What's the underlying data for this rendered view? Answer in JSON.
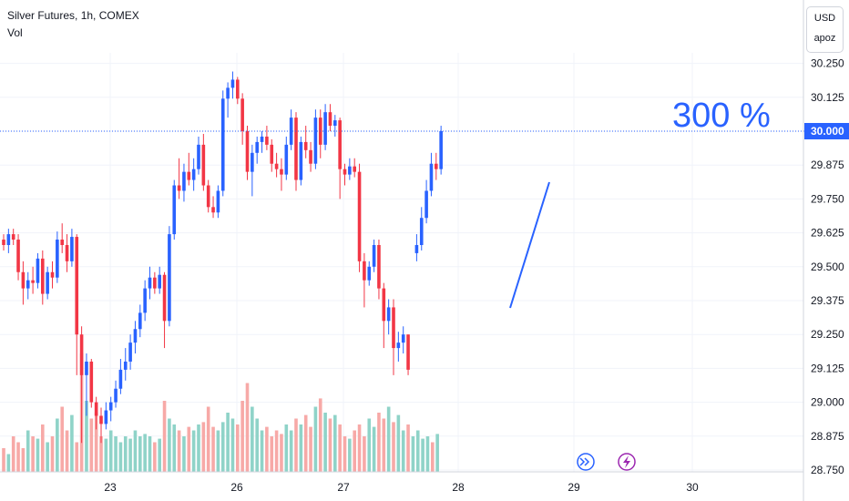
{
  "header": {
    "title": "Silver Futures, 1h, COMEX",
    "volume_label": "Vol"
  },
  "currency_button": {
    "currency": "USD",
    "scale_mode": "apoz"
  },
  "annotation": {
    "text": "300 %"
  },
  "price_marker": {
    "label": "30.000",
    "value": 30.0,
    "color": "#2962ff"
  },
  "colors": {
    "up": "#2962ff",
    "down": "#f23645",
    "vol_up": "#8fd3c8",
    "vol_down": "#f7a9a7",
    "marker_line": "#2962ff"
  },
  "icons": {
    "event_a": "double-chevron-right-icon",
    "event_b": "lightning-bolt-icon"
  },
  "chart_data": {
    "type": "candlestick",
    "title": "Silver Futures, 1h, COMEX",
    "ylim": [
      28.75,
      30.3
    ],
    "y_ticks": [
      "30.250",
      "30.125",
      "30.000",
      "29.875",
      "29.750",
      "29.625",
      "29.500",
      "29.375",
      "29.250",
      "29.125",
      "29.000",
      "28.875",
      "28.750"
    ],
    "x_ticks": [
      "23",
      "26",
      "27",
      "28",
      "29",
      "30"
    ],
    "grid": true,
    "candles": [
      [
        29.6,
        29.62,
        29.56,
        29.58
      ],
      [
        29.58,
        29.64,
        29.55,
        29.62
      ],
      [
        29.62,
        29.64,
        29.58,
        29.6
      ],
      [
        29.6,
        29.62,
        29.45,
        29.48
      ],
      [
        29.48,
        29.52,
        29.36,
        29.42
      ],
      [
        29.42,
        29.48,
        29.38,
        29.45
      ],
      [
        29.45,
        29.5,
        29.4,
        29.44
      ],
      [
        29.44,
        29.55,
        29.42,
        29.53
      ],
      [
        29.53,
        29.56,
        29.36,
        29.4
      ],
      [
        29.4,
        29.5,
        29.38,
        29.48
      ],
      [
        29.48,
        29.52,
        29.42,
        29.46
      ],
      [
        29.46,
        29.63,
        29.44,
        29.6
      ],
      [
        29.6,
        29.66,
        29.55,
        29.58
      ],
      [
        29.58,
        29.62,
        29.48,
        29.52
      ],
      [
        29.52,
        29.64,
        29.5,
        29.61
      ],
      [
        29.61,
        29.62,
        29.1,
        29.25
      ],
      [
        29.25,
        29.28,
        28.85,
        29.1
      ],
      [
        29.1,
        29.18,
        28.95,
        29.15
      ],
      [
        29.15,
        29.16,
        28.98,
        29.0
      ],
      [
        29.0,
        29.02,
        28.9,
        28.95
      ],
      [
        28.95,
        28.98,
        28.85,
        28.92
      ],
      [
        28.92,
        29.0,
        28.9,
        28.97
      ],
      [
        28.97,
        29.02,
        28.93,
        29.0
      ],
      [
        29.0,
        29.08,
        28.98,
        29.05
      ],
      [
        29.05,
        29.16,
        29.03,
        29.12
      ],
      [
        29.12,
        29.2,
        29.08,
        29.15
      ],
      [
        29.15,
        29.25,
        29.12,
        29.22
      ],
      [
        29.22,
        29.3,
        29.18,
        29.27
      ],
      [
        29.27,
        29.36,
        29.24,
        29.33
      ],
      [
        29.33,
        29.45,
        29.3,
        29.42
      ],
      [
        29.42,
        29.5,
        29.38,
        29.46
      ],
      [
        29.46,
        29.48,
        29.4,
        29.42
      ],
      [
        29.42,
        29.5,
        29.4,
        29.47
      ],
      [
        29.47,
        29.48,
        29.2,
        29.3
      ],
      [
        29.3,
        29.65,
        29.28,
        29.62
      ],
      [
        29.62,
        29.82,
        29.6,
        29.8
      ],
      [
        29.8,
        29.9,
        29.75,
        29.78
      ],
      [
        29.78,
        29.88,
        29.74,
        29.85
      ],
      [
        29.85,
        29.92,
        29.8,
        29.82
      ],
      [
        29.82,
        29.9,
        29.78,
        29.86
      ],
      [
        29.86,
        29.98,
        29.84,
        29.95
      ],
      [
        29.95,
        29.99,
        29.78,
        29.8
      ],
      [
        29.8,
        29.82,
        29.7,
        29.72
      ],
      [
        29.72,
        29.76,
        29.68,
        29.7
      ],
      [
        29.7,
        29.8,
        29.68,
        29.78
      ],
      [
        29.78,
        30.15,
        29.76,
        30.12
      ],
      [
        30.12,
        30.18,
        30.05,
        30.16
      ],
      [
        30.16,
        30.22,
        30.12,
        30.19
      ],
      [
        30.19,
        30.2,
        30.1,
        30.12
      ],
      [
        30.12,
        30.14,
        29.95,
        30.0
      ],
      [
        30.0,
        30.02,
        29.82,
        29.85
      ],
      [
        29.85,
        29.95,
        29.76,
        29.92
      ],
      [
        29.92,
        29.98,
        29.88,
        29.96
      ],
      [
        29.96,
        30.0,
        29.92,
        29.98
      ],
      [
        29.98,
        30.02,
        29.93,
        29.95
      ],
      [
        29.95,
        29.97,
        29.85,
        29.88
      ],
      [
        29.88,
        29.92,
        29.83,
        29.86
      ],
      [
        29.86,
        29.9,
        29.78,
        29.84
      ],
      [
        29.84,
        29.98,
        29.82,
        29.95
      ],
      [
        29.95,
        30.08,
        29.93,
        30.05
      ],
      [
        30.05,
        30.07,
        29.78,
        29.82
      ],
      [
        29.82,
        29.98,
        29.8,
        29.96
      ],
      [
        29.96,
        30.02,
        29.9,
        29.93
      ],
      [
        29.93,
        29.96,
        29.85,
        29.88
      ],
      [
        29.88,
        30.08,
        29.86,
        30.05
      ],
      [
        30.05,
        30.08,
        29.9,
        29.95
      ],
      [
        29.95,
        30.1,
        29.93,
        30.07
      ],
      [
        30.07,
        30.1,
        30.0,
        30.02
      ],
      [
        30.02,
        30.06,
        29.98,
        30.04
      ],
      [
        30.04,
        30.05,
        29.75,
        29.86
      ],
      [
        29.86,
        29.88,
        29.8,
        29.84
      ],
      [
        29.84,
        29.9,
        29.82,
        29.87
      ],
      [
        29.87,
        29.9,
        29.83,
        29.85
      ],
      [
        29.85,
        29.88,
        29.48,
        29.52
      ],
      [
        29.52,
        29.55,
        29.35,
        29.45
      ],
      [
        29.45,
        29.52,
        29.43,
        29.5
      ],
      [
        29.5,
        29.6,
        29.48,
        29.58
      ],
      [
        29.58,
        29.6,
        29.38,
        29.42
      ],
      [
        29.42,
        29.44,
        29.2,
        29.3
      ],
      [
        29.3,
        29.38,
        29.25,
        29.35
      ],
      [
        29.35,
        29.38,
        29.1,
        29.2
      ],
      [
        29.2,
        29.26,
        29.15,
        29.22
      ],
      [
        29.22,
        29.28,
        29.18,
        29.25
      ],
      [
        29.25,
        29.25,
        29.1,
        29.12
      ],
      [
        29.55,
        29.62,
        29.52,
        29.58
      ],
      [
        29.58,
        29.72,
        29.56,
        29.68
      ],
      [
        29.68,
        29.82,
        29.66,
        29.78
      ],
      [
        29.78,
        29.92,
        29.76,
        29.88
      ],
      [
        29.88,
        29.92,
        29.82,
        29.86
      ],
      [
        29.86,
        30.02,
        29.84,
        30.0
      ]
    ],
    "volume_max": 0.02,
    "volumes": [
      0.2,
      0.15,
      0.3,
      0.25,
      0.2,
      0.35,
      0.3,
      0.28,
      0.4,
      0.25,
      0.3,
      0.45,
      0.55,
      0.35,
      0.48,
      0.25,
      1.0,
      0.6,
      0.45,
      0.5,
      0.3,
      0.28,
      0.35,
      0.3,
      0.25,
      0.3,
      0.28,
      0.35,
      0.3,
      0.32,
      0.3,
      0.25,
      0.28,
      0.6,
      0.45,
      0.4,
      0.35,
      0.3,
      0.38,
      0.35,
      0.4,
      0.42,
      0.55,
      0.38,
      0.35,
      0.42,
      0.5,
      0.45,
      0.4,
      0.6,
      0.75,
      0.55,
      0.45,
      0.35,
      0.38,
      0.3,
      0.35,
      0.32,
      0.4,
      0.35,
      0.45,
      0.4,
      0.48,
      0.38,
      0.55,
      0.62,
      0.5,
      0.45,
      0.48,
      0.4,
      0.3,
      0.28,
      0.35,
      0.4,
      0.3,
      0.45,
      0.38,
      0.5,
      0.45,
      0.55,
      0.42,
      0.48,
      0.35,
      0.4,
      0.3,
      0.35,
      0.28,
      0.3,
      0.25,
      0.32
    ]
  }
}
